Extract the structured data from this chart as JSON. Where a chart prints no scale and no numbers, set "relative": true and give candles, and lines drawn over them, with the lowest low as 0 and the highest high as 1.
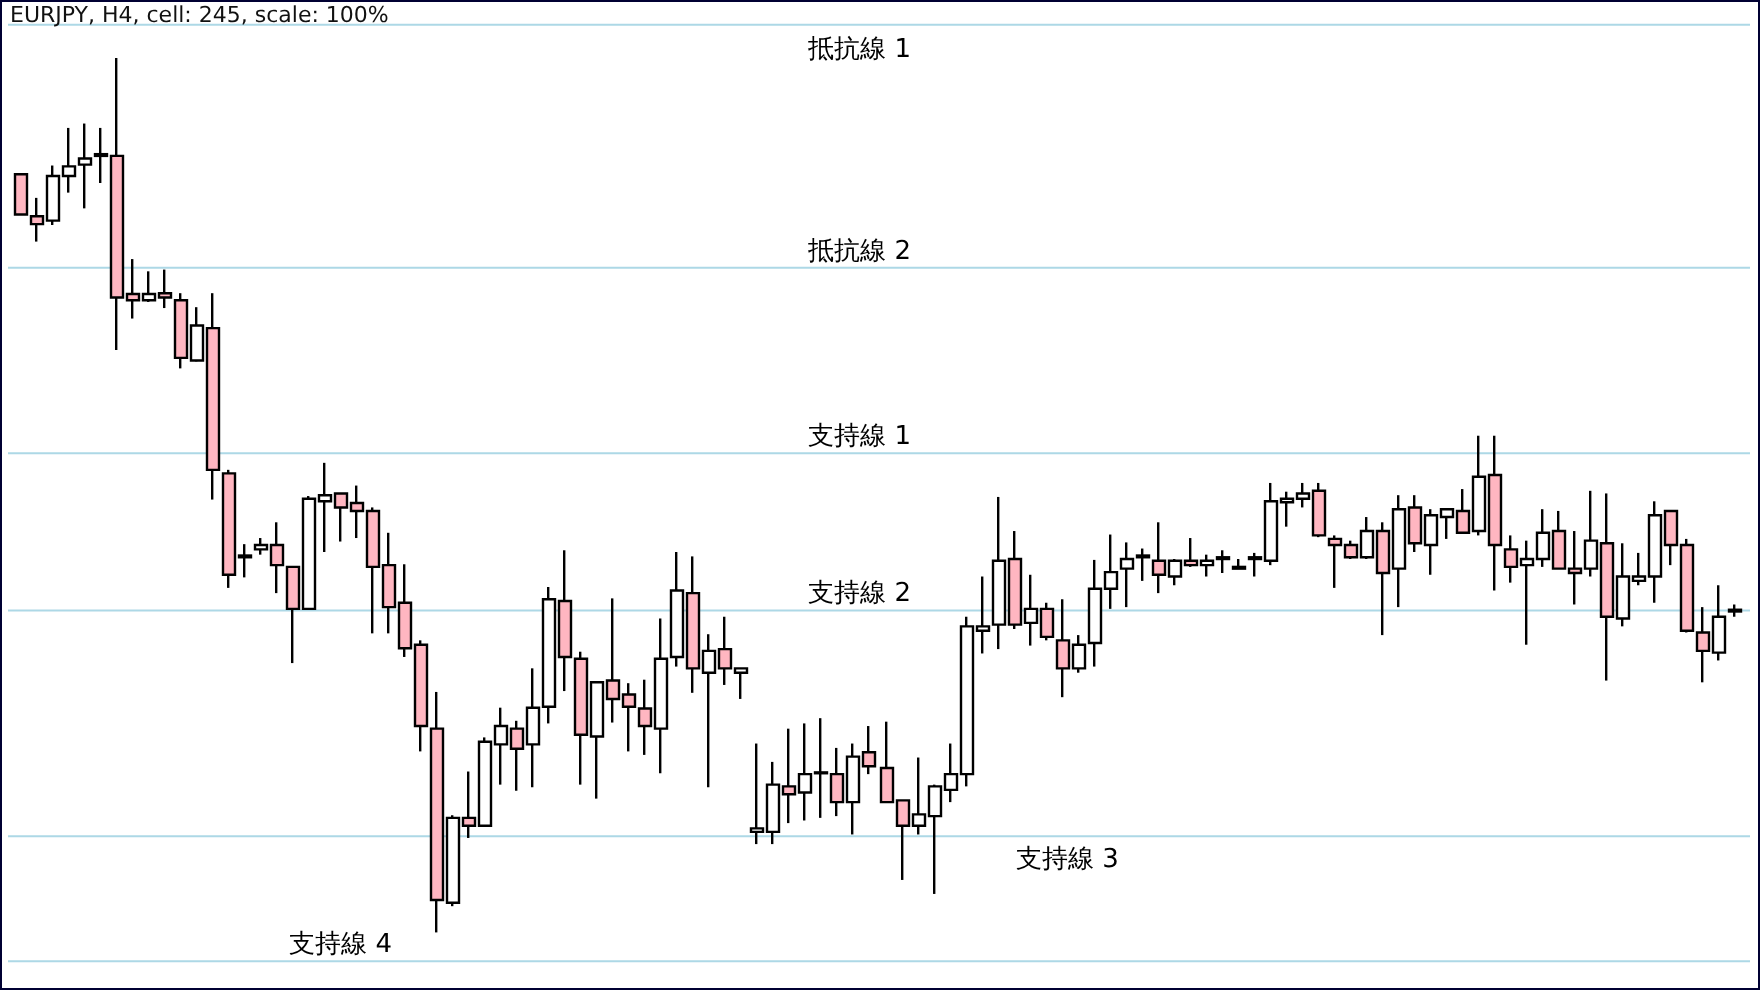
{
  "chart_data": {
    "type": "candlestick",
    "title": "EURJPY, H4, cell: 245, scale: 100%",
    "relative": true,
    "tick_labels": false,
    "categories": [
      null,
      null,
      null,
      null,
      null,
      null,
      null,
      null,
      null,
      null,
      null,
      null,
      null,
      null,
      null,
      null,
      null,
      null,
      null,
      null,
      null,
      null,
      null,
      null,
      null,
      null,
      null,
      null,
      null,
      null,
      null,
      null,
      null,
      null,
      null,
      null,
      null,
      null,
      null,
      null,
      null,
      null,
      null,
      null,
      null,
      null,
      null,
      null,
      null,
      null,
      null,
      null,
      null,
      null,
      null,
      null,
      null,
      null,
      null,
      null,
      null,
      null,
      null,
      null,
      null,
      null,
      null,
      null,
      null,
      null,
      null,
      null,
      null,
      null,
      null,
      null,
      null,
      null,
      null,
      null,
      null,
      null,
      null,
      null,
      null,
      null,
      null,
      null,
      null,
      null,
      null,
      null,
      null,
      null,
      null,
      null,
      null,
      null,
      null,
      null,
      null,
      null,
      null,
      null,
      null,
      null,
      null,
      null
    ],
    "ohlc": [
      [
        0.867,
        0.867,
        0.821,
        0.821
      ],
      [
        0.819,
        0.84,
        0.79,
        0.81
      ],
      [
        0.814,
        0.877,
        0.809,
        0.865
      ],
      [
        0.865,
        0.92,
        0.846,
        0.876
      ],
      [
        0.878,
        0.925,
        0.828,
        0.885
      ],
      [
        0.888,
        0.92,
        0.857,
        0.89
      ],
      [
        0.888,
        1.0,
        0.666,
        0.726
      ],
      [
        0.73,
        0.77,
        0.702,
        0.723
      ],
      [
        0.723,
        0.756,
        0.721,
        0.73
      ],
      [
        0.731,
        0.758,
        0.714,
        0.726
      ],
      [
        0.723,
        0.731,
        0.645,
        0.657
      ],
      [
        0.654,
        0.715,
        0.653,
        0.694
      ],
      [
        0.691,
        0.731,
        0.495,
        0.529
      ],
      [
        0.525,
        0.529,
        0.394,
        0.409
      ],
      [
        0.429,
        0.444,
        0.406,
        0.431
      ],
      [
        0.438,
        0.451,
        0.432,
        0.443
      ],
      [
        0.443,
        0.469,
        0.388,
        0.42
      ],
      [
        0.418,
        0.418,
        0.308,
        0.37
      ],
      [
        0.37,
        0.499,
        0.37,
        0.496
      ],
      [
        0.493,
        0.537,
        0.435,
        0.5
      ],
      [
        0.502,
        0.502,
        0.447,
        0.486
      ],
      [
        0.491,
        0.511,
        0.451,
        0.482
      ],
      [
        0.482,
        0.486,
        0.342,
        0.418
      ],
      [
        0.42,
        0.457,
        0.342,
        0.372
      ],
      [
        0.377,
        0.421,
        0.315,
        0.325
      ],
      [
        0.329,
        0.334,
        0.207,
        0.236
      ],
      [
        0.233,
        0.275,
        0.0,
        0.037
      ],
      [
        0.034,
        0.134,
        0.03,
        0.131
      ],
      [
        0.131,
        0.184,
        0.108,
        0.122
      ],
      [
        0.122,
        0.223,
        0.122,
        0.218
      ],
      [
        0.215,
        0.257,
        0.169,
        0.236
      ],
      [
        0.233,
        0.242,
        0.162,
        0.21
      ],
      [
        0.215,
        0.302,
        0.166,
        0.257
      ],
      [
        0.258,
        0.395,
        0.239,
        0.381
      ],
      [
        0.379,
        0.437,
        0.276,
        0.315
      ],
      [
        0.313,
        0.321,
        0.169,
        0.226
      ],
      [
        0.224,
        0.286,
        0.153,
        0.286
      ],
      [
        0.288,
        0.382,
        0.24,
        0.267
      ],
      [
        0.272,
        0.285,
        0.207,
        0.258
      ],
      [
        0.256,
        0.289,
        0.203,
        0.236
      ],
      [
        0.233,
        0.359,
        0.182,
        0.313
      ],
      [
        0.315,
        0.435,
        0.304,
        0.391
      ],
      [
        0.388,
        0.43,
        0.274,
        0.302
      ],
      [
        0.297,
        0.341,
        0.166,
        0.322
      ],
      [
        0.324,
        0.361,
        0.283,
        0.302
      ],
      [
        0.297,
        0.302,
        0.267,
        0.302
      ],
      [
        0.115,
        0.216,
        0.101,
        0.119
      ],
      [
        0.115,
        0.195,
        0.101,
        0.169
      ],
      [
        0.167,
        0.233,
        0.125,
        0.158
      ],
      [
        0.16,
        0.239,
        0.128,
        0.181
      ],
      [
        0.182,
        0.245,
        0.131,
        0.183
      ],
      [
        0.181,
        0.211,
        0.133,
        0.149
      ],
      [
        0.149,
        0.216,
        0.112,
        0.201
      ],
      [
        0.206,
        0.236,
        0.181,
        0.19
      ],
      [
        0.188,
        0.241,
        0.149,
        0.149
      ],
      [
        0.151,
        0.151,
        0.06,
        0.122
      ],
      [
        0.122,
        0.2,
        0.112,
        0.135
      ],
      [
        0.133,
        0.169,
        0.044,
        0.167
      ],
      [
        0.163,
        0.216,
        0.149,
        0.181
      ],
      [
        0.181,
        0.361,
        0.167,
        0.35
      ],
      [
        0.345,
        0.407,
        0.319,
        0.35
      ],
      [
        0.352,
        0.498,
        0.324,
        0.425
      ],
      [
        0.427,
        0.459,
        0.347,
        0.352
      ],
      [
        0.354,
        0.409,
        0.328,
        0.37
      ],
      [
        0.37,
        0.377,
        0.334,
        0.338
      ],
      [
        0.334,
        0.381,
        0.269,
        0.302
      ],
      [
        0.302,
        0.34,
        0.297,
        0.329
      ],
      [
        0.331,
        0.426,
        0.304,
        0.393
      ],
      [
        0.393,
        0.455,
        0.37,
        0.412
      ],
      [
        0.416,
        0.446,
        0.372,
        0.427
      ],
      [
        0.429,
        0.439,
        0.402,
        0.431
      ],
      [
        0.425,
        0.469,
        0.388,
        0.409
      ],
      [
        0.407,
        0.427,
        0.397,
        0.425
      ],
      [
        0.425,
        0.451,
        0.418,
        0.42
      ],
      [
        0.42,
        0.432,
        0.407,
        0.425
      ],
      [
        0.427,
        0.437,
        0.411,
        0.429
      ],
      [
        0.416,
        0.427,
        0.416,
        0.418
      ],
      [
        0.427,
        0.434,
        0.407,
        0.429
      ],
      [
        0.425,
        0.514,
        0.42,
        0.493
      ],
      [
        0.492,
        0.504,
        0.464,
        0.496
      ],
      [
        0.496,
        0.514,
        0.486,
        0.502
      ],
      [
        0.505,
        0.514,
        0.452,
        0.454
      ],
      [
        0.45,
        0.454,
        0.394,
        0.443
      ],
      [
        0.443,
        0.448,
        0.427,
        0.429
      ],
      [
        0.429,
        0.475,
        0.427,
        0.459
      ],
      [
        0.459,
        0.469,
        0.34,
        0.411
      ],
      [
        0.416,
        0.5,
        0.372,
        0.484
      ],
      [
        0.486,
        0.5,
        0.435,
        0.445
      ],
      [
        0.443,
        0.484,
        0.409,
        0.477
      ],
      [
        0.475,
        0.484,
        0.45,
        0.484
      ],
      [
        0.482,
        0.507,
        0.457,
        0.457
      ],
      [
        0.459,
        0.568,
        0.454,
        0.521
      ],
      [
        0.523,
        0.568,
        0.391,
        0.443
      ],
      [
        0.438,
        0.454,
        0.4,
        0.418
      ],
      [
        0.42,
        0.448,
        0.329,
        0.427
      ],
      [
        0.427,
        0.484,
        0.418,
        0.457
      ],
      [
        0.459,
        0.482,
        0.416,
        0.416
      ],
      [
        0.416,
        0.459,
        0.375,
        0.411
      ],
      [
        0.416,
        0.505,
        0.407,
        0.448
      ],
      [
        0.445,
        0.502,
        0.288,
        0.361
      ],
      [
        0.359,
        0.445,
        0.35,
        0.407
      ],
      [
        0.402,
        0.434,
        0.397,
        0.407
      ],
      [
        0.407,
        0.493,
        0.377,
        0.477
      ],
      [
        0.482,
        0.482,
        0.42,
        0.443
      ],
      [
        0.443,
        0.45,
        0.343,
        0.345
      ],
      [
        0.343,
        0.372,
        0.286,
        0.322
      ],
      [
        0.32,
        0.397,
        0.311,
        0.361
      ],
      [
        0.367,
        0.375,
        0.361,
        0.369
      ]
    ],
    "colors": [
      "#ffb6c1",
      "#ffb6c1",
      "#ffffff",
      "#ffffff",
      "#ffffff",
      "#ffffff",
      "#ffb6c1",
      "#ffb6c1",
      "#ffffff",
      "#ffb6c1",
      "#ffb6c1",
      "#ffffff",
      "#ffb6c1",
      "#ffb6c1",
      "#ffffff",
      "#ffffff",
      "#ffb6c1",
      "#ffb6c1",
      "#ffffff",
      "#ffffff",
      "#ffb6c1",
      "#ffb6c1",
      "#ffb6c1",
      "#ffb6c1",
      "#ffb6c1",
      "#ffb6c1",
      "#ffb6c1",
      "#ffffff",
      "#ffb6c1",
      "#ffffff",
      "#ffffff",
      "#ffb6c1",
      "#ffffff",
      "#ffffff",
      "#ffb6c1",
      "#ffb6c1",
      "#ffffff",
      "#ffb6c1",
      "#ffb6c1",
      "#ffb6c1",
      "#ffffff",
      "#ffffff",
      "#ffb6c1",
      "#ffffff",
      "#ffb6c1",
      "#ffffff",
      "#ffffff",
      "#ffffff",
      "#ffb6c1",
      "#ffffff",
      "#ffffff",
      "#ffb6c1",
      "#ffffff",
      "#ffb6c1",
      "#ffb6c1",
      "#ffb6c1",
      "#ffffff",
      "#ffffff",
      "#ffffff",
      "#ffffff",
      "#ffffff",
      "#ffffff",
      "#ffb6c1",
      "#ffffff",
      "#ffb6c1",
      "#ffb6c1",
      "#ffffff",
      "#ffffff",
      "#ffffff",
      "#ffffff",
      "#ffffff",
      "#ffb6c1",
      "#ffffff",
      "#ffb6c1",
      "#ffffff",
      "#ffffff",
      "#ffffff",
      "#ffffff",
      "#ffffff",
      "#ffffff",
      "#ffffff",
      "#ffb6c1",
      "#ffb6c1",
      "#ffb6c1",
      "#ffffff",
      "#ffb6c1",
      "#ffffff",
      "#ffb6c1",
      "#ffffff",
      "#ffffff",
      "#ffb6c1",
      "#ffffff",
      "#ffb6c1",
      "#ffb6c1",
      "#ffffff",
      "#ffffff",
      "#ffb6c1",
      "#ffb6c1",
      "#ffffff",
      "#ffb6c1",
      "#ffffff",
      "#ffffff",
      "#ffffff",
      "#ffb6c1",
      "#ffb6c1",
      "#ffb6c1",
      "#ffffff",
      "#ffffff"
    ],
    "ref_lines": [
      {
        "axis": "y",
        "value": 1.038,
        "label": "抵抗線 1",
        "color": "#add8e6"
      },
      {
        "axis": "y",
        "value": 0.76,
        "label": "抵抗線 2",
        "color": "#add8e6"
      },
      {
        "axis": "y",
        "value": 0.548,
        "label": "支持線 1",
        "color": "#add8e6"
      },
      {
        "axis": "y",
        "value": 0.368,
        "label": "支持線 2",
        "color": "#add8e6"
      },
      {
        "axis": "y",
        "value": 0.11,
        "label": "支持線 3",
        "color": "#add8e6"
      },
      {
        "axis": "y",
        "value": -0.033,
        "label": "支持線 4",
        "color": "#add8e6"
      }
    ]
  }
}
